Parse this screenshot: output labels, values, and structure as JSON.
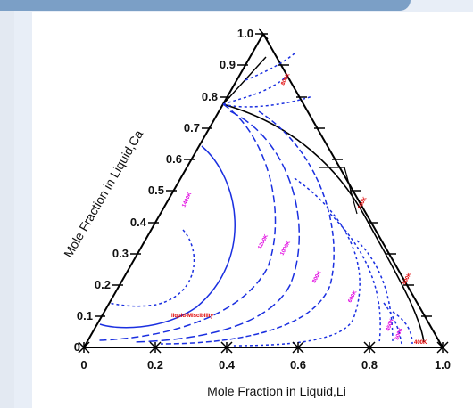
{
  "chart_data": {
    "type": "ternary",
    "components": [
      "Li",
      "Ca"
    ],
    "xlabel": "Mole Fraction in Liquid,Li",
    "ylabel": "Mole Fraction in Liquid,Ca",
    "bottom_ticks": [
      "0",
      "0.2",
      "0.4",
      "0.6",
      "0.8",
      "1.0"
    ],
    "left_ticks": [
      "0",
      "0.1",
      "0.2",
      "0.3",
      "0.4",
      "0.5",
      "0.6",
      "0.7",
      "0.8",
      "0.9",
      "1.0"
    ],
    "isotherm_labels": [
      {
        "text": "1400K",
        "color": "#e000e0"
      },
      {
        "text": "1200K",
        "color": "#e000e0"
      },
      {
        "text": "1000K",
        "color": "#e000e0"
      },
      {
        "text": "800K",
        "color": "#e000e0"
      },
      {
        "text": "600K",
        "color": "#e000e0"
      },
      {
        "text": "450K",
        "color": "#e000e0"
      },
      {
        "text": "500K",
        "color": "#e000e0"
      },
      {
        "text": "liquid-Miscibility",
        "color": "#e00000"
      },
      {
        "text": "800K",
        "color": "#e00000"
      },
      {
        "text": "600K",
        "color": "#e00000"
      },
      {
        "text": "500K",
        "color": "#e00000"
      },
      {
        "text": "400K",
        "color": "#e00000"
      }
    ],
    "colors": {
      "boundary": "#000000",
      "isotherm": "#1a2fe0",
      "label_magenta": "#e000e0",
      "label_red": "#e00000"
    }
  }
}
